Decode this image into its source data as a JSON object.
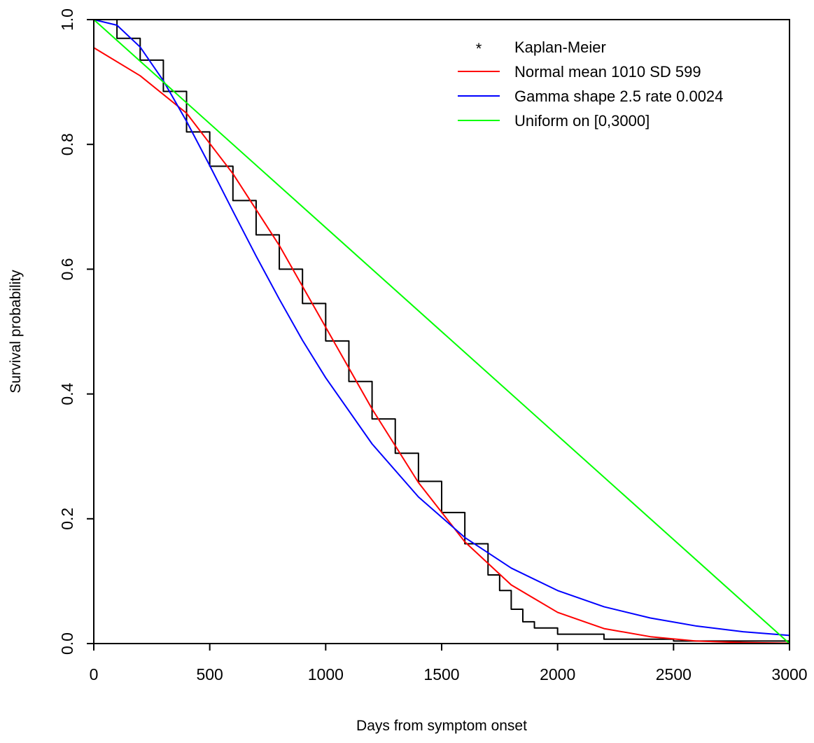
{
  "chart_data": {
    "type": "line",
    "title": "",
    "xlabel": "Days from symptom onset",
    "ylabel": "Survival probability",
    "xlim": [
      0,
      3000
    ],
    "ylim": [
      0,
      1
    ],
    "x_ticks": [
      "0",
      "500",
      "1000",
      "1500",
      "2000",
      "2500",
      "3000"
    ],
    "y_ticks": [
      "0.0",
      "0.2",
      "0.4",
      "0.6",
      "0.8",
      "1.0"
    ],
    "grid": false,
    "legend": {
      "position": "top-right",
      "items": [
        {
          "label": "Kaplan-Meier",
          "color": "#000000",
          "symbol": "*"
        },
        {
          "label": "Normal mean 1010 SD 599",
          "color": "#ff0000"
        },
        {
          "label": "Gamma shape 2.5 rate 0.0024",
          "color": "#0000ff"
        },
        {
          "label": "Uniform on [0,3000]",
          "color": "#00ff00"
        }
      ]
    },
    "series": [
      {
        "name": "Kaplan-Meier",
        "color": "#000000",
        "x": [
          0,
          100,
          200,
          300,
          400,
          500,
          600,
          700,
          800,
          900,
          1000,
          1100,
          1200,
          1300,
          1400,
          1500,
          1600,
          1700,
          1750,
          1800,
          1850,
          1900,
          2000,
          2200,
          2500,
          3000
        ],
        "y": [
          1.0,
          0.97,
          0.935,
          0.885,
          0.82,
          0.765,
          0.71,
          0.655,
          0.6,
          0.545,
          0.485,
          0.42,
          0.36,
          0.305,
          0.26,
          0.21,
          0.16,
          0.11,
          0.085,
          0.055,
          0.035,
          0.025,
          0.015,
          0.007,
          0.004,
          0.003
        ]
      },
      {
        "name": "Normal mean 1010 SD 599",
        "color": "#ff0000",
        "x": [
          0,
          200,
          400,
          600,
          800,
          1000,
          1200,
          1400,
          1600,
          1800,
          2000,
          2200,
          2400,
          2600,
          2800,
          3000
        ],
        "y": [
          0.955,
          0.91,
          0.85,
          0.753,
          0.638,
          0.507,
          0.376,
          0.258,
          0.163,
          0.094,
          0.05,
          0.024,
          0.011,
          0.004,
          0.0015,
          0.0005
        ]
      },
      {
        "name": "Gamma shape 2.5 rate 0.0024",
        "color": "#0000ff",
        "x": [
          0,
          100,
          200,
          300,
          400,
          500,
          600,
          700,
          800,
          900,
          1000,
          1200,
          1400,
          1600,
          1800,
          2000,
          2200,
          2400,
          2600,
          2800,
          3000
        ],
        "y": [
          1.0,
          0.991,
          0.956,
          0.902,
          0.837,
          0.766,
          0.693,
          0.621,
          0.552,
          0.486,
          0.426,
          0.32,
          0.235,
          0.17,
          0.121,
          0.085,
          0.059,
          0.041,
          0.028,
          0.019,
          0.013
        ]
      },
      {
        "name": "Uniform on [0,3000]",
        "color": "#00ff00",
        "x": [
          0,
          3000
        ],
        "y": [
          1.0,
          0.0
        ]
      }
    ]
  }
}
